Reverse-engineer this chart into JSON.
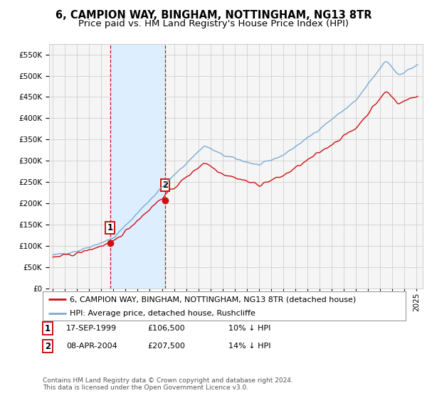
{
  "title": "6, CAMPION WAY, BINGHAM, NOTTINGHAM, NG13 8TR",
  "subtitle": "Price paid vs. HM Land Registry's House Price Index (HPI)",
  "legend_line1": "6, CAMPION WAY, BINGHAM, NOTTINGHAM, NG13 8TR (detached house)",
  "legend_line2": "HPI: Average price, detached house, Rushcliffe",
  "footnote": "Contains HM Land Registry data © Crown copyright and database right 2024.\nThis data is licensed under the Open Government Licence v3.0.",
  "sale1_date": "17-SEP-1999",
  "sale1_price": "£106,500",
  "sale1_hpi": "10% ↓ HPI",
  "sale2_date": "08-APR-2004",
  "sale2_price": "£207,500",
  "sale2_hpi": "14% ↓ HPI",
  "sale1_year": 1999.72,
  "sale1_value": 106500,
  "sale2_year": 2004.27,
  "sale2_value": 207500,
  "hpi_color": "#7aaad4",
  "price_color": "#cc1111",
  "background_color": "#ffffff",
  "plot_bg_color": "#f5f5f5",
  "grid_color": "#d0d0d0",
  "shade_color": "#ddeeff",
  "ylim": [
    0,
    575000
  ],
  "yticks": [
    0,
    50000,
    100000,
    150000,
    200000,
    250000,
    300000,
    350000,
    400000,
    450000,
    500000,
    550000
  ],
  "xlim_min": 1994.7,
  "xlim_max": 2025.5,
  "title_fontsize": 10.5,
  "subtitle_fontsize": 9.5,
  "tick_fontsize": 7.5,
  "legend_fontsize": 8.0,
  "ann_fontsize": 8.0,
  "footnote_fontsize": 6.5
}
